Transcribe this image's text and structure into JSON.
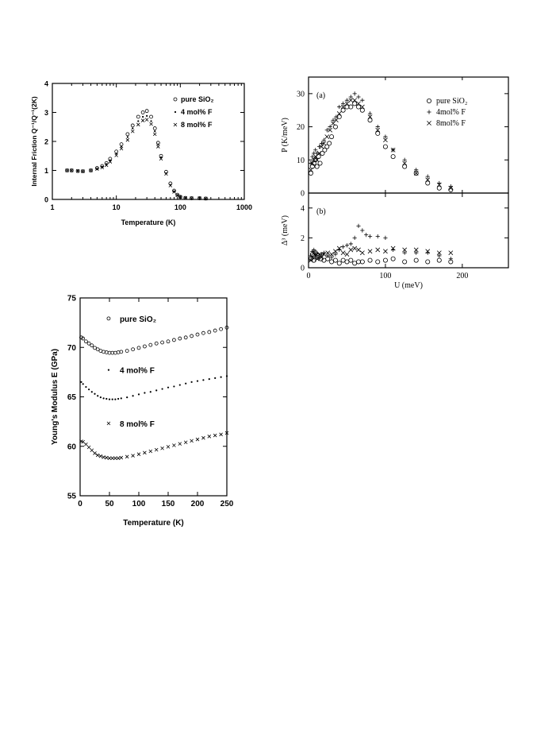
{
  "chart_data": [
    {
      "id": "friction",
      "type": "scatter",
      "xlabel": "Temperature (K)",
      "ylabel": "Internal Friction Q⁻¹/Q⁻¹(2K)",
      "xscale": "log",
      "xlim": [
        1,
        1000
      ],
      "ylim": [
        0,
        4
      ],
      "xticks": [
        1,
        10,
        100,
        1000
      ],
      "xticklabels": [
        "1",
        "10",
        "100",
        "1000"
      ],
      "yticks": [
        0,
        1,
        2,
        3,
        4
      ],
      "yticklabels": [
        "0",
        "1",
        "2",
        "3",
        "4"
      ],
      "legend_position": "top-right",
      "series": [
        {
          "name": "pure SiO₂",
          "marker": "circle",
          "x": [
            1.7,
            2,
            2.5,
            3,
            4,
            5,
            6,
            7,
            8,
            10,
            12,
            15,
            18,
            22,
            26,
            30,
            35,
            40,
            45,
            50,
            60,
            70,
            80,
            90,
            100,
            120,
            150,
            200,
            250
          ],
          "y": [
            1.0,
            1.0,
            0.98,
            0.97,
            1.0,
            1.08,
            1.15,
            1.25,
            1.4,
            1.65,
            1.9,
            2.25,
            2.55,
            2.85,
            3.0,
            3.05,
            2.85,
            2.45,
            1.95,
            1.5,
            0.95,
            0.55,
            0.3,
            0.16,
            0.09,
            0.05,
            0.04,
            0.04,
            0.03
          ]
        },
        {
          "name": "4 mol% F",
          "marker": "dot",
          "x": [
            1.7,
            2,
            2.5,
            3,
            4,
            5,
            6,
            7,
            8,
            10,
            12,
            15,
            18,
            22,
            26,
            30,
            35,
            40,
            45,
            50,
            60,
            70,
            80,
            90,
            100,
            120,
            150,
            200,
            250
          ],
          "y": [
            1.0,
            1.0,
            0.98,
            0.97,
            1.0,
            1.06,
            1.13,
            1.22,
            1.35,
            1.58,
            1.82,
            2.15,
            2.45,
            2.7,
            2.85,
            2.88,
            2.7,
            2.35,
            1.9,
            1.45,
            0.9,
            0.5,
            0.28,
            0.15,
            0.08,
            0.05,
            0.04,
            0.04,
            0.03
          ]
        },
        {
          "name": "8 mol% F",
          "marker": "x",
          "x": [
            1.7,
            2,
            2.5,
            3,
            4,
            5,
            6,
            7,
            8,
            10,
            12,
            15,
            18,
            22,
            26,
            30,
            35,
            40,
            45,
            50,
            60,
            70,
            80,
            90,
            100,
            120,
            150,
            200,
            250
          ],
          "y": [
            1.0,
            1.0,
            0.98,
            0.97,
            1.0,
            1.05,
            1.1,
            1.18,
            1.3,
            1.52,
            1.75,
            2.05,
            2.35,
            2.58,
            2.72,
            2.75,
            2.6,
            2.25,
            1.82,
            1.4,
            0.88,
            0.48,
            0.26,
            0.14,
            0.08,
            0.05,
            0.04,
            0.04,
            0.03
          ]
        }
      ]
    },
    {
      "id": "P",
      "type": "scatter",
      "panel_label": "(a)",
      "xlabel": "",
      "ylabel": "P (K/meV)",
      "xlim": [
        0,
        260
      ],
      "ylim": [
        0,
        35
      ],
      "yticks": [
        0,
        10,
        20,
        30
      ],
      "yticklabels": [
        "0",
        "10",
        "20",
        "30"
      ],
      "legend_position": "top-right",
      "series": [
        {
          "name": "pure SiO₂",
          "marker": "circle",
          "x": [
            3,
            5,
            7,
            9,
            11,
            13,
            15,
            18,
            21,
            24,
            27,
            30,
            35,
            40,
            45,
            50,
            55,
            60,
            65,
            70,
            80,
            90,
            100,
            110,
            125,
            140,
            155,
            170,
            185
          ],
          "y": [
            6,
            8,
            9,
            10,
            8,
            11,
            9,
            12,
            13,
            14,
            15,
            17,
            20,
            23,
            25,
            26,
            26,
            27,
            26,
            25,
            22,
            18,
            14,
            11,
            8,
            6,
            3,
            1.5,
            1
          ]
        },
        {
          "name": "4mol% F",
          "marker": "plus",
          "x": [
            3,
            5,
            7,
            9,
            11,
            14,
            17,
            20,
            24,
            28,
            32,
            36,
            40,
            45,
            50,
            55,
            60,
            65,
            70,
            80,
            90,
            100,
            110,
            125,
            140,
            155,
            170,
            185
          ],
          "y": [
            9,
            11,
            12,
            13,
            12,
            14,
            15,
            16,
            19,
            20,
            22,
            23,
            26,
            27,
            28,
            29,
            30,
            29,
            28,
            24,
            20,
            17,
            13,
            10,
            7,
            5,
            3,
            2
          ]
        },
        {
          "name": "8mol% F",
          "marker": "x",
          "x": [
            3,
            5,
            7,
            9,
            11,
            14,
            17,
            20,
            24,
            28,
            32,
            36,
            40,
            45,
            50,
            55,
            60,
            65,
            70,
            80,
            90,
            100,
            110,
            125,
            140,
            155,
            170,
            185
          ],
          "y": [
            7,
            9,
            10,
            11,
            10,
            12,
            14,
            15,
            17,
            19,
            21,
            22,
            24,
            26,
            27,
            28,
            28,
            27,
            26,
            23,
            19,
            16,
            13,
            9,
            6,
            4,
            2.5,
            1.5
          ]
        }
      ]
    },
    {
      "id": "delta",
      "type": "scatter",
      "panel_label": "(b)",
      "xlabel": "U (meV)",
      "ylabel": "Δ³ (meV)",
      "xlim": [
        0,
        260
      ],
      "ylim": [
        0,
        5
      ],
      "xticks": [
        0,
        100,
        200
      ],
      "xticklabels": [
        "0",
        "100",
        "200"
      ],
      "yticks": [
        0,
        2,
        4
      ],
      "yticklabels": [
        "0",
        "2",
        "4"
      ],
      "series": [
        {
          "name": "pure SiO₂",
          "marker": "circle",
          "x": [
            3,
            5,
            7,
            9,
            11,
            13,
            16,
            20,
            25,
            30,
            35,
            40,
            45,
            50,
            55,
            60,
            65,
            70,
            80,
            90,
            100,
            110,
            125,
            140,
            155,
            170,
            185
          ],
          "y": [
            0.6,
            0.9,
            0.5,
            1.0,
            0.7,
            0.8,
            0.6,
            0.5,
            0.6,
            0.4,
            0.5,
            0.3,
            0.5,
            0.4,
            0.5,
            0.3,
            0.4,
            0.4,
            0.5,
            0.4,
            0.5,
            0.6,
            0.4,
            0.5,
            0.4,
            0.5,
            0.4
          ]
        },
        {
          "name": "4mol% F",
          "marker": "plus",
          "x": [
            3,
            5,
            7,
            9,
            11,
            14,
            17,
            20,
            25,
            30,
            35,
            40,
            45,
            50,
            55,
            60,
            65,
            70,
            75,
            80,
            90,
            100,
            110,
            125,
            140,
            155,
            170,
            185
          ],
          "y": [
            0.8,
            1.1,
            1.2,
            0.9,
            1.0,
            0.7,
            0.9,
            1.0,
            0.8,
            0.7,
            0.9,
            1.2,
            1.4,
            1.5,
            1.6,
            2.0,
            2.8,
            2.5,
            2.2,
            2.1,
            2.1,
            2.0,
            1.2,
            1.0,
            1.0,
            1.0,
            0.8,
            0.6
          ]
        },
        {
          "name": "8mol% F",
          "marker": "x",
          "x": [
            3,
            5,
            7,
            9,
            11,
            14,
            17,
            20,
            25,
            30,
            35,
            40,
            45,
            50,
            55,
            60,
            65,
            70,
            80,
            90,
            100,
            110,
            125,
            140,
            155,
            170,
            185
          ],
          "y": [
            0.5,
            0.7,
            1.0,
            0.8,
            0.6,
            0.9,
            0.7,
            0.9,
            1.0,
            0.9,
            1.1,
            1.3,
            1.0,
            0.9,
            1.2,
            1.3,
            1.2,
            1.0,
            1.1,
            1.2,
            1.1,
            1.3,
            1.2,
            1.2,
            1.1,
            1.0,
            1.0
          ]
        }
      ]
    },
    {
      "id": "modulus",
      "type": "scatter",
      "xlabel": "Temperature (K)",
      "ylabel": "Young's Modulus E (GPa)",
      "xlim": [
        0,
        250
      ],
      "ylim": [
        55,
        75
      ],
      "xticks": [
        0,
        50,
        100,
        150,
        200,
        250
      ],
      "xticklabels": [
        "0",
        "50",
        "100",
        "150",
        "200",
        "250"
      ],
      "yticks": [
        55,
        60,
        65,
        70,
        75
      ],
      "yticklabels": [
        "55",
        "60",
        "65",
        "70",
        "75"
      ],
      "series": [
        {
          "name": "pure SiO₂",
          "marker": "circle",
          "label_position": [
            0.27,
            0.88
          ],
          "x": [
            2,
            5,
            10,
            15,
            20,
            25,
            30,
            35,
            40,
            45,
            50,
            55,
            60,
            65,
            70,
            80,
            90,
            100,
            110,
            120,
            130,
            140,
            150,
            160,
            170,
            180,
            190,
            200,
            210,
            220,
            230,
            240,
            250
          ],
          "y": [
            71.0,
            70.9,
            70.6,
            70.4,
            70.2,
            69.95,
            69.8,
            69.65,
            69.55,
            69.5,
            69.45,
            69.45,
            69.45,
            69.5,
            69.55,
            69.65,
            69.8,
            69.95,
            70.1,
            70.25,
            70.4,
            70.5,
            70.6,
            70.75,
            70.9,
            71.0,
            71.15,
            71.3,
            71.45,
            71.55,
            71.7,
            71.85,
            72.0
          ]
        },
        {
          "name": "4 mol% F",
          "marker": "dot",
          "label_position": [
            0.27,
            0.62
          ],
          "x": [
            2,
            5,
            10,
            15,
            20,
            25,
            30,
            35,
            40,
            45,
            50,
            55,
            60,
            65,
            70,
            80,
            90,
            100,
            110,
            120,
            130,
            140,
            150,
            160,
            170,
            180,
            190,
            200,
            210,
            220,
            230,
            240,
            250
          ],
          "y": [
            66.5,
            66.3,
            66.0,
            65.75,
            65.5,
            65.3,
            65.1,
            64.95,
            64.85,
            64.8,
            64.75,
            64.75,
            64.75,
            64.8,
            64.85,
            64.95,
            65.1,
            65.25,
            65.4,
            65.5,
            65.65,
            65.8,
            65.95,
            66.05,
            66.2,
            66.35,
            66.5,
            66.6,
            66.7,
            66.8,
            66.9,
            67.0,
            67.1
          ]
        },
        {
          "name": "8 mol% F",
          "marker": "x",
          "label_position": [
            0.27,
            0.35
          ],
          "x": [
            2,
            5,
            10,
            15,
            20,
            25,
            30,
            35,
            40,
            45,
            50,
            55,
            60,
            65,
            70,
            80,
            90,
            100,
            110,
            120,
            130,
            140,
            150,
            160,
            170,
            180,
            190,
            200,
            210,
            220,
            230,
            240,
            250
          ],
          "y": [
            60.5,
            60.45,
            60.2,
            59.9,
            59.6,
            59.3,
            59.1,
            59.0,
            58.9,
            58.85,
            58.8,
            58.8,
            58.8,
            58.8,
            58.85,
            58.95,
            59.05,
            59.2,
            59.35,
            59.5,
            59.65,
            59.8,
            59.95,
            60.1,
            60.25,
            60.4,
            60.55,
            60.7,
            60.85,
            61.0,
            61.1,
            61.2,
            61.35
          ]
        }
      ]
    }
  ]
}
